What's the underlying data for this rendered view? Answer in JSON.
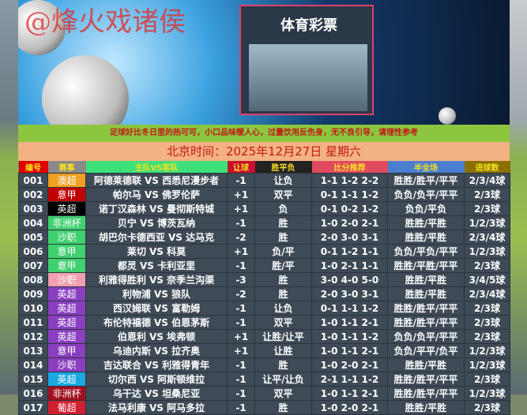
{
  "banner": {
    "watermark": "@烽火戏诸侯",
    "store_sign": "体育彩票"
  },
  "notice": "足球好比冬日里的热可可，小口品味暖人心，过量饮用反伤身，无不良引导，请理性参考",
  "date": "北京时间：2025年12月27日  星期六",
  "headers": [
    {
      "label": "编号",
      "color": "#e00000"
    },
    {
      "label": "赛事",
      "color": "#8a8a8a"
    },
    {
      "label": "主队VS客队",
      "color": "#3ee07a"
    },
    {
      "label": "让球",
      "color": "#c8102e"
    },
    {
      "label": "胜平负",
      "color": "#222222"
    },
    {
      "label": "比分推荐",
      "color": "#e04a5f"
    },
    {
      "label": "半全场",
      "color": "#4a7fd0"
    },
    {
      "label": "进球数",
      "color": "#8a7000"
    }
  ],
  "rows": [
    {
      "no": "001",
      "league": "澳超",
      "lc": "#f0a020",
      "match": "阿德莱德联 VS 西悉尼漫步者",
      "hc": "-1",
      "res": "让负",
      "score": "1-1 1-2 2-2",
      "hf": "胜胜/胜平/平平",
      "goals": "2/3/4球"
    },
    {
      "no": "002",
      "league": "意甲",
      "lc": "#c00000",
      "match": "帕尔马 VS 佛罗伦萨",
      "hc": "+1",
      "res": "双平",
      "score": "0-1 1-1 1-2",
      "hf": "负负/负平/平平",
      "goals": "2/3球"
    },
    {
      "no": "003",
      "league": "英超",
      "lc": "#000000",
      "match": "诺丁汉森林 VS 曼彻斯特城",
      "hc": "+1",
      "res": "负",
      "score": "0-1 0-2 1-2",
      "hf": "负负/平负",
      "goals": "2/3球"
    },
    {
      "no": "004",
      "league": "非洲杯",
      "lc": "#40d070",
      "match": "贝宁 VS 博茨瓦纳",
      "hc": "-1",
      "res": "胜",
      "score": "1-0 2-0 2-1",
      "hf": "胜胜/平胜",
      "goals": "1/2/3球"
    },
    {
      "no": "005",
      "league": "沙职",
      "lc": "#40d070",
      "match": "胡巴尔卡德西亚 VS 达马克",
      "hc": "-2",
      "res": "胜",
      "score": "2-0 3-0 3-1",
      "hf": "胜胜/平胜",
      "goals": "2/3/4球"
    },
    {
      "no": "006",
      "league": "意甲",
      "lc": "#40d070",
      "match": "莱切 VS 科莫",
      "hc": "+1",
      "res": "负/平",
      "score": "0-1 1-2 1-1",
      "hf": "负负/平负/平平",
      "goals": "1/2/3球"
    },
    {
      "no": "007",
      "league": "意甲",
      "lc": "#40d070",
      "match": "都灵 VS 卡利亚里",
      "hc": "-1",
      "res": "胜/平",
      "score": "1-0 2-1 1-1",
      "hf": "胜胜/平胜/平平",
      "goals": "2/3球"
    },
    {
      "no": "008",
      "league": "沙职",
      "lc": "#f0a0b0",
      "match": "利雅得胜利 VS 奈季兰沟渠",
      "hc": "-3",
      "res": "胜",
      "score": "3-0 4-0 5-0",
      "hf": "胜胜/平胜",
      "goals": "3/4/5球"
    },
    {
      "no": "009",
      "league": "英超",
      "lc": "#8a3fc0",
      "match": "利物浦 VS 狼队",
      "hc": "-2",
      "res": "胜",
      "score": "2-0 3-0 3-1",
      "hf": "胜胜/平胜",
      "goals": "2/3/4球"
    },
    {
      "no": "010",
      "league": "英超",
      "lc": "#8a3fc0",
      "match": "西汉姆联 VS 富勒姆",
      "hc": "-1",
      "res": "让负",
      "score": "0-1 1-1 1-2",
      "hf": "胜胜/胜平/平平",
      "goals": "2/3球"
    },
    {
      "no": "011",
      "league": "英超",
      "lc": "#8a3fc0",
      "match": "布伦特福德 VS 伯恩茅斯",
      "hc": "-1",
      "res": "双平",
      "score": "1-0 1-1 2-1",
      "hf": "胜胜/胜平/平平",
      "goals": "2/3球"
    },
    {
      "no": "012",
      "league": "英超",
      "lc": "#8a3fc0",
      "match": "伯恩利 VS 埃弗顿",
      "hc": "+1",
      "res": "让胜/让平",
      "score": "1-0 1-1 1-2",
      "hf": "负负/负平/平平",
      "goals": "2/3球"
    },
    {
      "no": "013",
      "league": "意甲",
      "lc": "#8a3fc0",
      "match": "乌迪内斯 VS 拉齐奥",
      "hc": "+1",
      "res": "让胜",
      "score": "1-0 1-1 2-1",
      "hf": "负负/平平/负平",
      "goals": "1/2/3球"
    },
    {
      "no": "014",
      "league": "沙职",
      "lc": "#8a3fc0",
      "match": "吉达联合 VS 利雅得青年",
      "hc": "-1",
      "res": "胜",
      "score": "1-0 2-0 2-1",
      "hf": "胜胜/平胜",
      "goals": "1/2/3球"
    },
    {
      "no": "015",
      "league": "英超",
      "lc": "#1aa8e0",
      "match": "切尔西 VS 阿斯顿维拉",
      "hc": "-1",
      "res": "让平/让负",
      "score": "2-1 1-1 1-2",
      "hf": "胜胜/胜平/平平",
      "goals": "2/3球"
    },
    {
      "no": "016",
      "league": "非洲杯",
      "lc": "#a01020",
      "match": "乌干达 VS 坦桑尼亚",
      "hc": "-1",
      "res": "双平",
      "score": "1-0 1-1 2-1",
      "hf": "胜胜/胜平/平平",
      "goals": "1/2/3球"
    },
    {
      "no": "017",
      "league": "葡超",
      "lc": "#d02030",
      "match": "法马利康 VS 阿马多拉",
      "hc": "-1",
      "res": "胜",
      "score": "1-0 2-0 2-1",
      "hf": "胜胜/平胜",
      "goals": "2/3球"
    }
  ]
}
